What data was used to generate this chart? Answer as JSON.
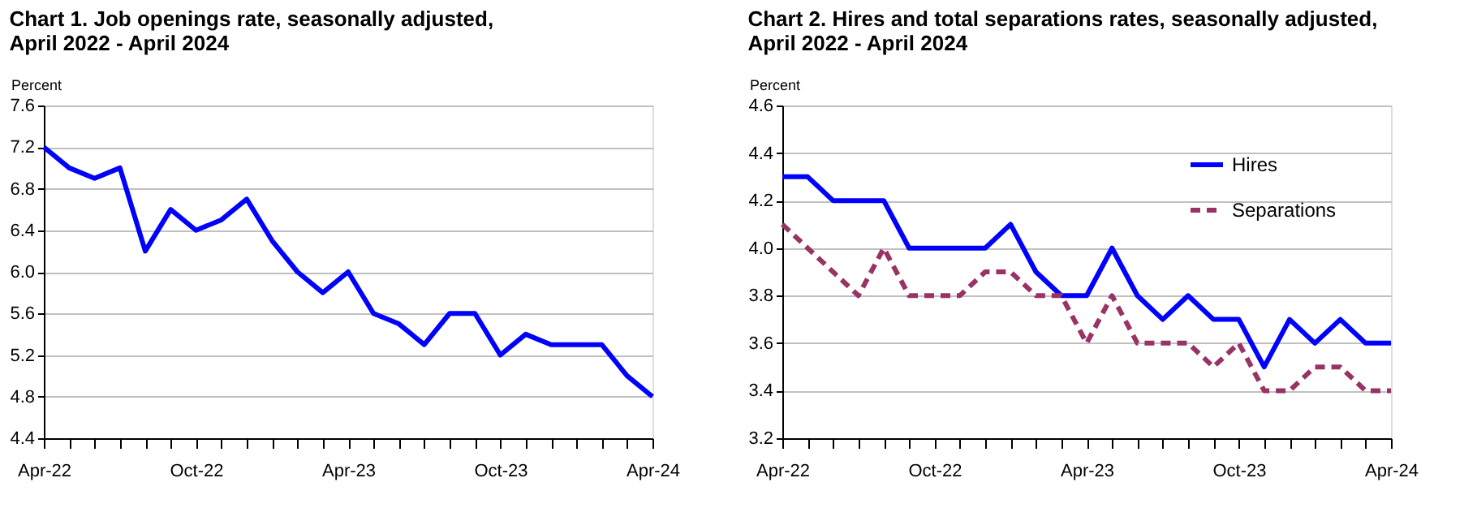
{
  "chart_data": [
    {
      "type": "line",
      "title": "Chart 1. Job openings rate, seasonally adjusted,\nApril 2022 - April 2024",
      "ylabel": "Percent",
      "categories": [
        "Apr-22",
        null,
        null,
        null,
        null,
        null,
        "Oct-22",
        null,
        null,
        null,
        null,
        null,
        "Apr-23",
        null,
        null,
        null,
        null,
        null,
        "Oct-23",
        null,
        null,
        null,
        null,
        null,
        "Apr-24"
      ],
      "series": [
        {
          "color": "#0000ff",
          "line_style": "solid",
          "values": [
            7.2,
            7.0,
            6.9,
            7.0,
            6.2,
            6.6,
            6.4,
            6.5,
            6.7,
            6.3,
            6.0,
            5.8,
            6.0,
            5.6,
            5.5,
            5.3,
            5.6,
            5.6,
            5.2,
            5.4,
            5.3,
            5.3,
            5.3,
            5.0,
            4.8
          ]
        }
      ],
      "ylim": [
        4.4,
        7.6
      ],
      "yticks": [
        {
          "value": 4.4,
          "label": "4.4"
        },
        {
          "value": 4.8,
          "label": "4.8"
        },
        {
          "value": 5.2,
          "label": "5.2"
        },
        {
          "value": 5.6,
          "label": "5.6"
        },
        {
          "value": 6.0,
          "label": "6.0"
        },
        {
          "value": 6.4,
          "label": "6.4"
        },
        {
          "value": 6.8,
          "label": "6.8"
        },
        {
          "value": 7.2,
          "label": "7.2"
        },
        {
          "value": 7.6,
          "label": "7.6"
        }
      ],
      "grid": "y",
      "legend": false,
      "marker": "none"
    },
    {
      "type": "line",
      "title": "Chart 2. Hires and total separations rates, seasonally adjusted,\nApril 2022 - April 2024",
      "ylabel": "Percent",
      "categories": [
        "Apr-22",
        null,
        null,
        null,
        null,
        null,
        "Oct-22",
        null,
        null,
        null,
        null,
        null,
        "Apr-23",
        null,
        null,
        null,
        null,
        null,
        "Oct-23",
        null,
        null,
        null,
        null,
        null,
        "Apr-24"
      ],
      "series": [
        {
          "name": "Hires",
          "color": "#0000ff",
          "line_style": "solid",
          "values": [
            4.3,
            4.3,
            4.2,
            4.2,
            4.2,
            4.0,
            4.0,
            4.0,
            4.0,
            4.1,
            3.9,
            3.8,
            3.8,
            4.0,
            3.8,
            3.7,
            3.8,
            3.7,
            3.7,
            3.5,
            3.7,
            3.6,
            3.7,
            3.6,
            3.6
          ]
        },
        {
          "name": "Separations",
          "color": "#993366",
          "line_style": "dashed",
          "values": [
            4.1,
            4.0,
            3.9,
            3.8,
            4.0,
            3.8,
            3.8,
            3.8,
            3.9,
            3.9,
            3.8,
            3.8,
            3.6,
            3.8,
            3.6,
            3.6,
            3.6,
            3.5,
            3.6,
            3.4,
            3.4,
            3.5,
            3.5,
            3.4,
            3.4
          ]
        }
      ],
      "ylim": [
        3.2,
        4.6
      ],
      "yticks": [
        {
          "value": 3.2,
          "label": "3.2"
        },
        {
          "value": 3.4,
          "label": "3.4"
        },
        {
          "value": 3.6,
          "label": "3.6"
        },
        {
          "value": 3.8,
          "label": "3.8"
        },
        {
          "value": 4.0,
          "label": "4.0"
        },
        {
          "value": 4.2,
          "label": "4.2"
        },
        {
          "value": 4.4,
          "label": "4.4"
        },
        {
          "value": 4.6,
          "label": "4.6"
        }
      ],
      "grid": "y",
      "legend": "top right",
      "marker": "none"
    }
  ]
}
